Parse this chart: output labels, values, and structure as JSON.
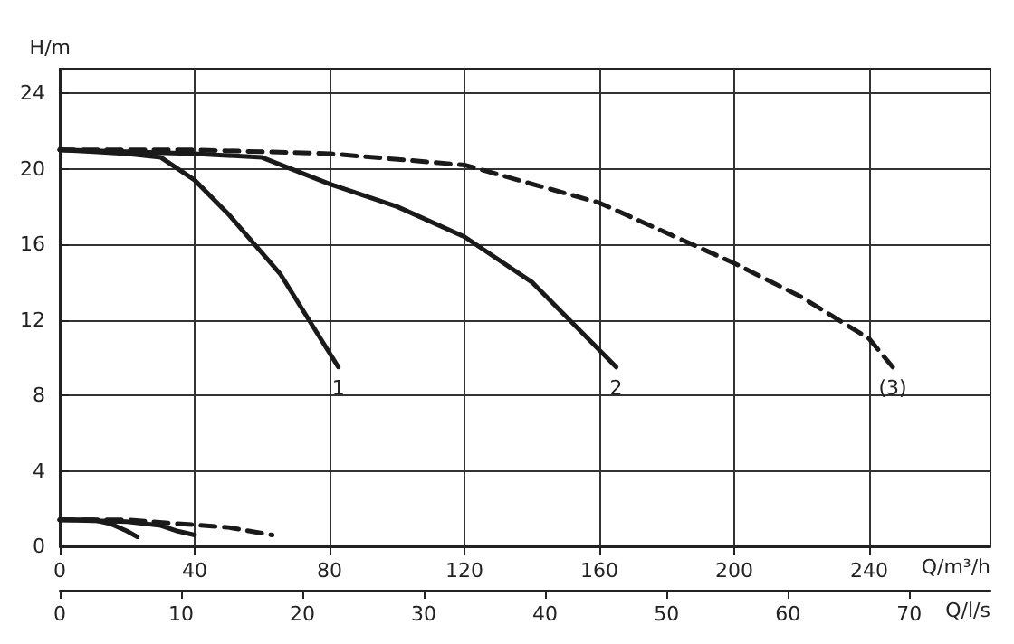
{
  "chart_data": {
    "type": "line",
    "xlabel": "Q/m³/h",
    "ylabel": "H/m",
    "x2label": "Q/l/s",
    "xlim": [
      0,
      276
    ],
    "xticks": [
      0,
      40,
      80,
      120,
      160,
      200,
      240
    ],
    "x2lim": [
      0,
      76.7
    ],
    "x2ticks": [
      0,
      10,
      20,
      30,
      40,
      50,
      60,
      70
    ],
    "ylim": [
      0,
      25.3
    ],
    "yticks": [
      0,
      4,
      8,
      12,
      16,
      20,
      24
    ],
    "grid": true,
    "legend": false,
    "marker": "none",
    "series": [
      {
        "name": "1",
        "color": "#1a1a1a",
        "line_style": "solid",
        "x": [
          0,
          10,
          20,
          30,
          40,
          50,
          65.5,
          82.6
        ],
        "values": [
          21.0,
          20.9,
          20.8,
          20.6,
          19.4,
          17.6,
          14.4,
          9.5
        ]
      },
      {
        "name": "2",
        "color": "#1a1a1a",
        "line_style": "solid",
        "x": [
          0,
          20,
          40,
          60,
          80,
          100,
          120,
          140,
          165
        ],
        "values": [
          21.0,
          20.9,
          20.8,
          20.6,
          19.2,
          18.0,
          16.4,
          14.0,
          9.5
        ]
      },
      {
        "name": "(3)",
        "color": "#1a1a1a",
        "line_style": "dashed",
        "x": [
          0,
          40,
          80,
          120,
          160,
          200,
          220,
          240,
          247
        ],
        "values": [
          21.0,
          21.0,
          20.8,
          20.2,
          18.2,
          15.0,
          13.2,
          11.0,
          9.5
        ]
      },
      {
        "color": "#1a1a1a",
        "line_style": "solid",
        "x": [
          0,
          10,
          15,
          20,
          23
        ],
        "values": [
          1.4,
          1.4,
          1.2,
          0.8,
          0.5
        ]
      },
      {
        "color": "#1a1a1a",
        "line_style": "solid",
        "x": [
          0,
          20,
          30,
          35,
          40
        ],
        "values": [
          1.4,
          1.3,
          1.1,
          0.8,
          0.6
        ]
      },
      {
        "color": "#1a1a1a",
        "line_style": "dashed",
        "x": [
          0,
          20,
          35,
          50,
          63
        ],
        "values": [
          1.4,
          1.4,
          1.2,
          1.0,
          0.6
        ]
      }
    ]
  }
}
